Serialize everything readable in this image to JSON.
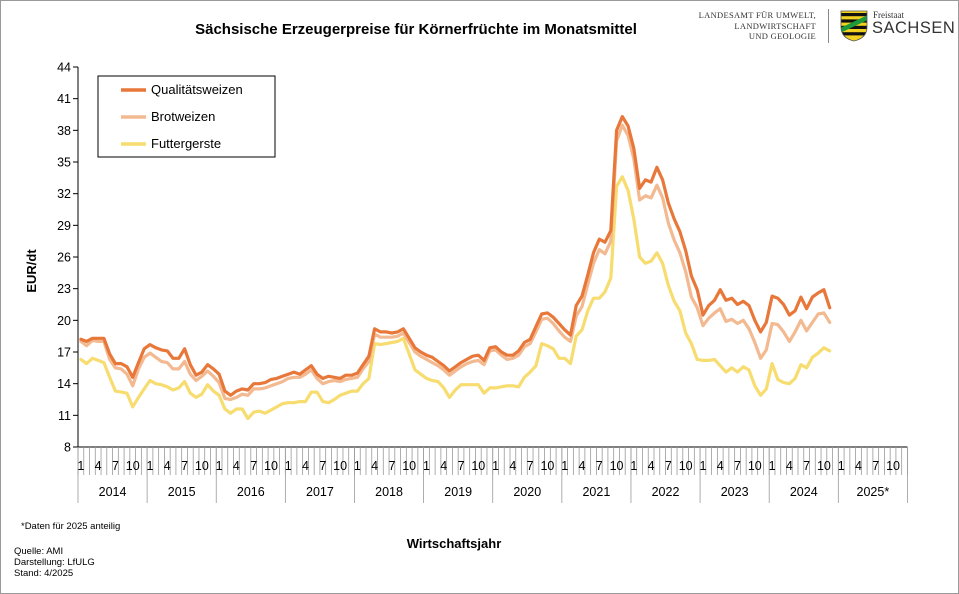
{
  "chart_data": {
    "type": "line",
    "title": "Sächsische Erzeugerpreise für Körnerfrüchte im Monatsmittel",
    "xlabel": "Wirtschaftsjahr",
    "ylabel": "EUR/dt",
    "ylim": [
      8,
      44
    ],
    "yticks": [
      8,
      11,
      14,
      17,
      20,
      23,
      26,
      29,
      32,
      35,
      38,
      41,
      44
    ],
    "month_ticks": [
      "1",
      "4",
      "7",
      "10"
    ],
    "years": [
      "2014",
      "2015",
      "2016",
      "2017",
      "2018",
      "2019",
      "2020",
      "2021",
      "2022",
      "2023",
      "2024",
      "2025*"
    ],
    "legend_position": "top-left",
    "grid": false,
    "series": [
      {
        "name": "Qualitätsweizen",
        "color": "#E8773A",
        "values": [
          18.2,
          18.0,
          18.3,
          18.3,
          18.3,
          16.8,
          15.9,
          15.9,
          15.6,
          14.6,
          16.0,
          17.3,
          17.7,
          17.4,
          17.2,
          17.1,
          16.4,
          16.4,
          17.3,
          15.8,
          14.8,
          15.1,
          15.8,
          15.4,
          14.9,
          13.3,
          12.9,
          13.3,
          13.5,
          13.4,
          14.0,
          14.0,
          14.1,
          14.4,
          14.5,
          14.7,
          14.9,
          15.1,
          14.9,
          15.3,
          15.7,
          14.9,
          14.5,
          14.7,
          14.6,
          14.5,
          14.8,
          14.8,
          15.0,
          15.8,
          16.6,
          19.2,
          18.9,
          18.9,
          18.8,
          18.9,
          19.2,
          18.3,
          17.4,
          17.0,
          16.7,
          16.5,
          16.1,
          15.7,
          15.2,
          15.6,
          16.0,
          16.3,
          16.6,
          16.7,
          16.2,
          17.4,
          17.5,
          17.0,
          16.7,
          16.7,
          17.1,
          17.9,
          18.2,
          19.4,
          20.6,
          20.7,
          20.3,
          19.7,
          19.1,
          18.6,
          21.4,
          22.3,
          24.3,
          26.4,
          27.7,
          27.4,
          28.5,
          38.0,
          39.3,
          38.4,
          36.3,
          32.5,
          33.3,
          33.1,
          34.5,
          33.3,
          31.1,
          29.6,
          28.4,
          26.6,
          24.2,
          22.9,
          20.5,
          21.4,
          21.9,
          22.9,
          21.9,
          22.1,
          21.5,
          21.8,
          21.4,
          20.0,
          18.9,
          19.8,
          22.3,
          22.1,
          21.5,
          20.5,
          20.9,
          22.2,
          21.1,
          22.2,
          22.6,
          22.9,
          21.2
        ]
      },
      {
        "name": "Brotweizen",
        "color": "#F3B990",
        "values": [
          18.0,
          17.6,
          18.1,
          18.0,
          18.0,
          16.3,
          15.5,
          15.4,
          14.9,
          13.8,
          15.4,
          16.5,
          16.9,
          16.5,
          16.1,
          16.0,
          15.4,
          15.4,
          16.1,
          14.9,
          14.3,
          14.7,
          15.2,
          14.7,
          14.1,
          12.6,
          12.5,
          12.7,
          13.0,
          12.9,
          13.5,
          13.5,
          13.6,
          13.8,
          14.0,
          14.2,
          14.5,
          14.6,
          14.6,
          14.9,
          15.3,
          14.5,
          14.0,
          14.2,
          14.3,
          14.2,
          14.4,
          14.5,
          14.6,
          15.4,
          16.1,
          18.7,
          18.4,
          18.4,
          18.4,
          18.5,
          18.8,
          17.9,
          17.0,
          16.6,
          16.3,
          16.0,
          15.7,
          15.3,
          14.8,
          15.2,
          15.6,
          15.9,
          16.1,
          16.2,
          15.8,
          17.1,
          17.2,
          16.7,
          16.3,
          16.4,
          16.7,
          17.5,
          17.8,
          18.9,
          20.1,
          20.2,
          19.7,
          19.0,
          18.4,
          18.0,
          20.4,
          21.3,
          23.4,
          25.4,
          26.7,
          26.3,
          27.5,
          37.0,
          38.5,
          37.5,
          35.3,
          31.4,
          31.8,
          31.6,
          32.8,
          31.6,
          29.2,
          27.6,
          26.4,
          24.6,
          22.2,
          21.2,
          19.5,
          20.2,
          20.7,
          21.1,
          19.9,
          20.1,
          19.7,
          20.0,
          19.2,
          17.9,
          16.4,
          17.2,
          19.7,
          19.6,
          18.9,
          18.0,
          18.9,
          20.0,
          19.0,
          19.8,
          20.6,
          20.7,
          19.8
        ]
      },
      {
        "name": "Futtergerste",
        "color": "#F7DC6F",
        "values": [
          16.3,
          15.9,
          16.4,
          16.2,
          16.0,
          14.6,
          13.3,
          13.2,
          13.1,
          11.8,
          12.7,
          13.5,
          14.3,
          14.0,
          13.9,
          13.7,
          13.4,
          13.6,
          14.2,
          13.1,
          12.7,
          13.0,
          13.9,
          13.3,
          12.9,
          11.6,
          11.2,
          11.6,
          11.6,
          10.7,
          11.3,
          11.4,
          11.2,
          11.5,
          11.8,
          12.1,
          12.2,
          12.2,
          12.3,
          12.3,
          13.2,
          13.2,
          12.3,
          12.2,
          12.5,
          12.9,
          13.1,
          13.3,
          13.3,
          14.0,
          14.5,
          17.8,
          17.7,
          17.8,
          17.9,
          18.0,
          18.3,
          16.8,
          15.3,
          14.9,
          14.5,
          14.3,
          14.2,
          13.6,
          12.7,
          13.4,
          13.9,
          13.9,
          13.9,
          13.9,
          13.1,
          13.6,
          13.6,
          13.7,
          13.8,
          13.8,
          13.7,
          14.6,
          15.1,
          15.7,
          17.8,
          17.6,
          17.3,
          16.4,
          16.4,
          15.9,
          18.5,
          19.1,
          20.9,
          22.1,
          22.1,
          22.7,
          24.0,
          32.7,
          33.6,
          32.3,
          29.6,
          26.0,
          25.4,
          25.6,
          26.4,
          25.4,
          23.3,
          21.8,
          20.9,
          18.8,
          17.8,
          16.3,
          16.2,
          16.2,
          16.3,
          15.7,
          15.1,
          15.5,
          15.1,
          15.6,
          15.3,
          13.8,
          12.9,
          13.5,
          15.9,
          14.4,
          14.1,
          14.0,
          14.5,
          15.8,
          15.5,
          16.5,
          16.9,
          17.4,
          17.1
        ]
      }
    ]
  },
  "footnote": "*Daten  für 2025 anteilig",
  "source": {
    "quelle": "Quelle:  AMI",
    "darstellung": "Darstellung: LfULG",
    "stand": "Stand: 4/2025"
  },
  "logo": {
    "agency_line1": "LANDESAMT FÜR UMWELT,",
    "agency_line2": "LANDWIRTSCHAFT",
    "agency_line3": "UND GEOLOGIE",
    "state_small": "Freistaat",
    "state_big": "SACHSEN",
    "shield_colors": [
      "#1E9A3A",
      "#F2D21F",
      "#111111"
    ]
  }
}
